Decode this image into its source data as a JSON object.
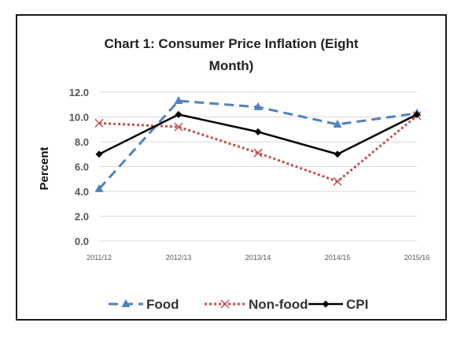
{
  "chart_data": {
    "type": "line",
    "title_line1": "Chart 1: Consumer Price Inflation (Eight",
    "title_line2": "Month)",
    "xlabel": "",
    "ylabel": "Percent",
    "ylim": [
      0,
      12
    ],
    "yticks": [
      "0.0",
      "2.0",
      "4.0",
      "6.0",
      "8.0",
      "10.0",
      "12.0"
    ],
    "grid": true,
    "categories": [
      "2011/12",
      "2012/13",
      "2013/14",
      "2014/15",
      "2015/16"
    ],
    "series": [
      {
        "name": "Food",
        "values": [
          4.2,
          11.3,
          10.8,
          9.4,
          10.3
        ],
        "color": "#4f81bd",
        "style": "dashed",
        "marker": "triangle"
      },
      {
        "name": "Non-food",
        "values": [
          9.5,
          9.2,
          7.1,
          4.8,
          10.1
        ],
        "color": "#c0504d",
        "style": "dotted",
        "marker": "x"
      },
      {
        "name": "CPI",
        "values": [
          7.0,
          10.2,
          8.8,
          7.0,
          10.2
        ],
        "color": "#000000",
        "style": "solid",
        "marker": "diamond"
      }
    ],
    "legend_position": "bottom"
  }
}
